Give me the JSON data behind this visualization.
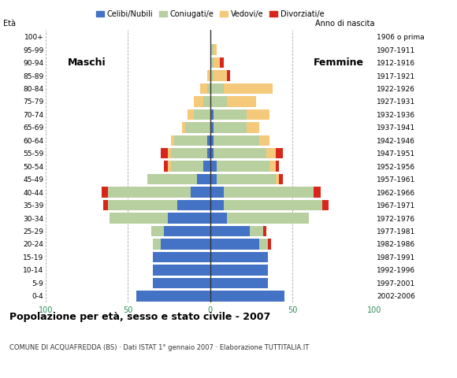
{
  "age_groups": [
    "0-4",
    "5-9",
    "10-14",
    "15-19",
    "20-24",
    "25-29",
    "30-34",
    "35-39",
    "40-44",
    "45-49",
    "50-54",
    "55-59",
    "60-64",
    "65-69",
    "70-74",
    "75-79",
    "80-84",
    "85-89",
    "90-94",
    "95-99",
    "100+"
  ],
  "birth_years": [
    "2002-2006",
    "1997-2001",
    "1992-1996",
    "1987-1991",
    "1982-1986",
    "1977-1981",
    "1972-1976",
    "1967-1971",
    "1962-1966",
    "1957-1961",
    "1952-1956",
    "1947-1951",
    "1942-1946",
    "1937-1941",
    "1932-1936",
    "1927-1931",
    "1922-1926",
    "1917-1921",
    "1912-1916",
    "1907-1911",
    "1906 o prima"
  ],
  "males": {
    "celibi": [
      45,
      35,
      35,
      35,
      30,
      28,
      26,
      20,
      12,
      8,
      4,
      2,
      2,
      0,
      0,
      0,
      0,
      0,
      0,
      0,
      0
    ],
    "coniugati": [
      0,
      0,
      0,
      0,
      5,
      8,
      35,
      42,
      50,
      30,
      20,
      22,
      20,
      15,
      10,
      4,
      2,
      0,
      0,
      0,
      0
    ],
    "vedovi": [
      0,
      0,
      0,
      0,
      0,
      0,
      0,
      0,
      0,
      0,
      2,
      2,
      2,
      2,
      4,
      6,
      4,
      2,
      0,
      0,
      0
    ],
    "divorziati": [
      0,
      0,
      0,
      0,
      0,
      0,
      0,
      3,
      4,
      0,
      2,
      4,
      0,
      0,
      0,
      0,
      0,
      0,
      0,
      0,
      0
    ]
  },
  "females": {
    "nubili": [
      45,
      35,
      35,
      35,
      30,
      24,
      10,
      8,
      8,
      4,
      4,
      2,
      2,
      2,
      2,
      0,
      0,
      0,
      0,
      0,
      0
    ],
    "coniugate": [
      0,
      0,
      0,
      0,
      5,
      8,
      50,
      60,
      55,
      36,
      32,
      32,
      28,
      20,
      20,
      10,
      8,
      2,
      2,
      2,
      0
    ],
    "vedove": [
      0,
      0,
      0,
      0,
      0,
      0,
      0,
      0,
      0,
      2,
      4,
      6,
      6,
      8,
      14,
      18,
      30,
      8,
      4,
      2,
      0
    ],
    "divorziate": [
      0,
      0,
      0,
      0,
      2,
      2,
      0,
      4,
      4,
      2,
      2,
      4,
      0,
      0,
      0,
      0,
      0,
      2,
      2,
      0,
      0
    ]
  },
  "colors": {
    "celibi": "#4472c4",
    "coniugati": "#b8cfa0",
    "vedovi": "#f5c97a",
    "divorziati": "#d9261c"
  },
  "xlim": 100,
  "title": "Popolazione per età, sesso e stato civile - 2007",
  "subtitle": "COMUNE DI ACQUAFREDDA (BS) · Dati ISTAT 1° gennaio 2007 · Elaborazione TUTTITALIA.IT",
  "label_maschi": "Maschi",
  "label_femmine": "Femmine",
  "legend_labels": [
    "Celibi/Nubili",
    "Coniugati/e",
    "Vedovi/e",
    "Divorziati/e"
  ]
}
